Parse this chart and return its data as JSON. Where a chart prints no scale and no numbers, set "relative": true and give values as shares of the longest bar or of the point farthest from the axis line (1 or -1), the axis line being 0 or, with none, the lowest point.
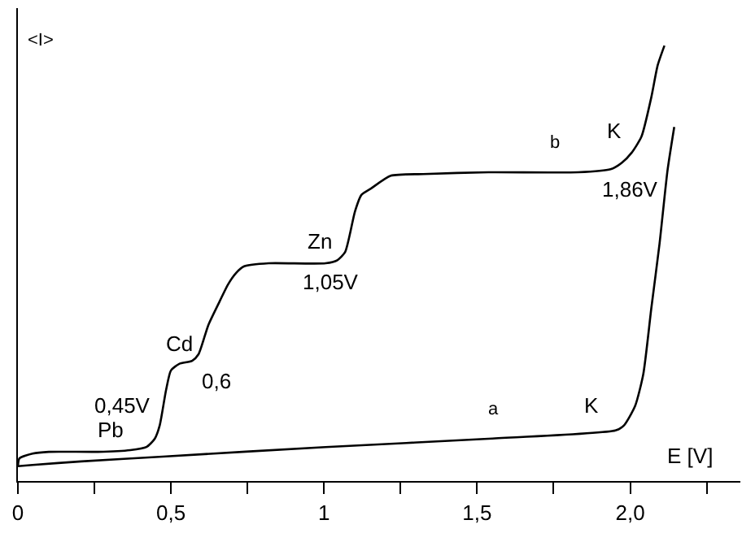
{
  "chart_data": {
    "type": "line",
    "relative": true,
    "xlabel": "E [V]",
    "ylabel": "<I>",
    "series": [
      {
        "name": "b",
        "color": "#000000",
        "x": [
          0.0,
          0.005,
          0.048,
          0.101,
          0.261,
          0.367,
          0.42,
          0.447,
          0.463,
          0.484,
          0.5,
          0.527,
          0.569,
          0.59,
          0.622,
          0.66,
          0.686,
          0.713,
          0.739,
          0.819,
          1.005,
          1.043,
          1.069,
          1.101,
          1.122,
          1.154,
          1.218,
          1.324,
          1.537,
          1.83,
          1.936,
          1.973,
          2.005,
          2.037,
          2.069,
          2.09,
          2.112
        ],
        "values": [
          0.034,
          0.052,
          0.063,
          0.067,
          0.067,
          0.071,
          0.078,
          0.097,
          0.127,
          0.209,
          0.254,
          0.269,
          0.276,
          0.291,
          0.358,
          0.414,
          0.451,
          0.478,
          0.493,
          0.5,
          0.5,
          0.507,
          0.526,
          0.619,
          0.657,
          0.672,
          0.701,
          0.705,
          0.709,
          0.709,
          0.716,
          0.731,
          0.754,
          0.791,
          0.881,
          0.955,
          1
        ]
      },
      {
        "name": "a",
        "color": "#000000",
        "x": [
          0.0,
          0.048,
          0.207,
          0.473,
          1.005,
          1.537,
          1.952,
          1.979,
          2.016,
          2.043,
          2.069,
          2.096,
          2.122,
          2.144
        ],
        "values": [
          0.034,
          0.037,
          0.045,
          0.056,
          0.078,
          0.097,
          0.116,
          0.127,
          0.172,
          0.246,
          0.396,
          0.545,
          0.713,
          0.813
        ]
      }
    ],
    "xlim": [
      0,
      2.36
    ],
    "xticks": [
      0,
      {
        "value": 0.25,
        "label": null
      },
      {
        "value": 0.5,
        "label": "0,5"
      },
      {
        "value": 0.75,
        "label": null
      },
      1,
      {
        "value": 1.25,
        "label": null
      },
      {
        "value": 1.5,
        "label": "1,5"
      },
      {
        "value": 1.75,
        "label": null
      },
      {
        "value": 2.0,
        "label": "2,0"
      },
      {
        "value": 2.25,
        "label": null
      }
    ],
    "annotations": [
      {
        "text": "Pb",
        "x": 0.261,
        "y": 0.067
      },
      {
        "text": "0,45V",
        "x": 0.463,
        "y": 0.127
      },
      {
        "text": "Cd",
        "x": 0.527,
        "y": 0.269
      },
      {
        "text": "0,6",
        "x": 0.569,
        "y": 0.276
      },
      {
        "text": "Zn",
        "x": 1.005,
        "y": 0.5
      },
      {
        "text": "1,05V",
        "x": 1.043,
        "y": 0.507
      },
      {
        "text": "K",
        "x": 2.005,
        "y": 0.754
      },
      {
        "text": "1,86V",
        "x": 1.936,
        "y": 0.716
      },
      {
        "text": "K",
        "x": 1.952,
        "y": 0.116
      }
    ],
    "legend": false,
    "marker": "none",
    "line_style": "solid"
  }
}
